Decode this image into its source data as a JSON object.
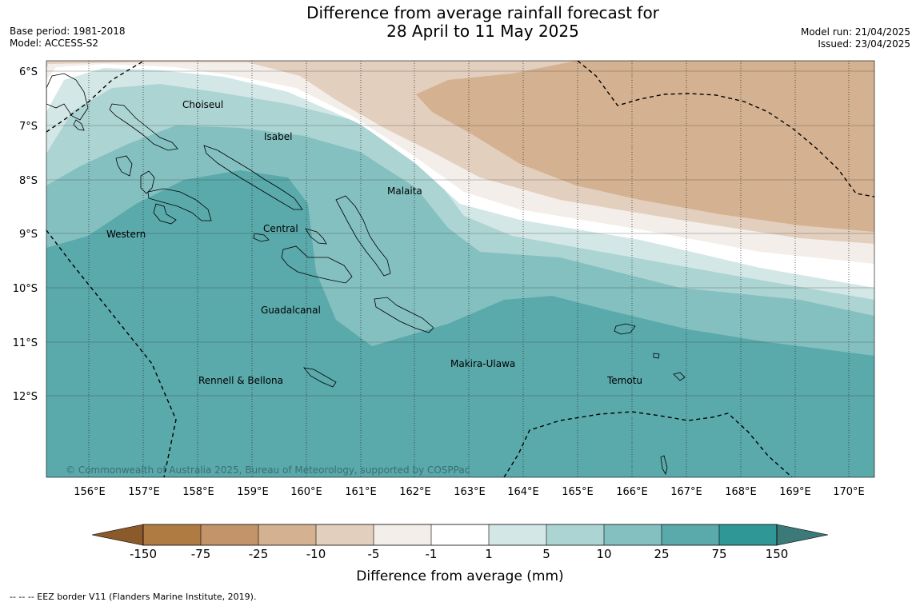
{
  "title": {
    "line1": "Difference from average rainfall forecast for",
    "line2": "28 April to 11 May 2025"
  },
  "header_left": {
    "base_period": "Base period: 1981-2018",
    "model": "Model: ACCESS-S2"
  },
  "header_right": {
    "model_run": "Model run: 21/04/2025",
    "issued": "Issued: 23/04/2025"
  },
  "map": {
    "lat_labels": [
      "6°S",
      "7°S",
      "8°S",
      "9°S",
      "10°S",
      "11°S",
      "12°S"
    ],
    "lon_labels": [
      "156°E",
      "157°E",
      "158°E",
      "159°E",
      "160°E",
      "161°E",
      "162°E",
      "163°E",
      "164°E",
      "165°E",
      "166°E",
      "167°E",
      "168°E",
      "169°E",
      "170°E"
    ],
    "places": [
      "Choiseul",
      "Isabel",
      "Malaita",
      "Western",
      "Central",
      "Guadalcanal",
      "Makira-Ulawa",
      "Rennell & Bellona",
      "Temotu"
    ],
    "copyright": "© Commonwealth of Australia 2025, Bureau of Meteorology, supported by COSPPac"
  },
  "colorbar": {
    "ticks": [
      "-150",
      "-75",
      "-25",
      "-10",
      "-5",
      "-1",
      "1",
      "5",
      "10",
      "25",
      "75",
      "150"
    ],
    "colors": [
      "#8b5a2b",
      "#b07a43",
      "#c39369",
      "#d4b291",
      "#e3cfbe",
      "#f3eee9",
      "#ffffff",
      "#d3e7e6",
      "#acd4d3",
      "#84c0c0",
      "#5aa9ab",
      "#2f9896",
      "#3c7a79"
    ],
    "label": "Difference from average (mm)"
  },
  "footer": "--  --  -- EEZ border V11 (Flanders Marine Institute, 2019)."
}
